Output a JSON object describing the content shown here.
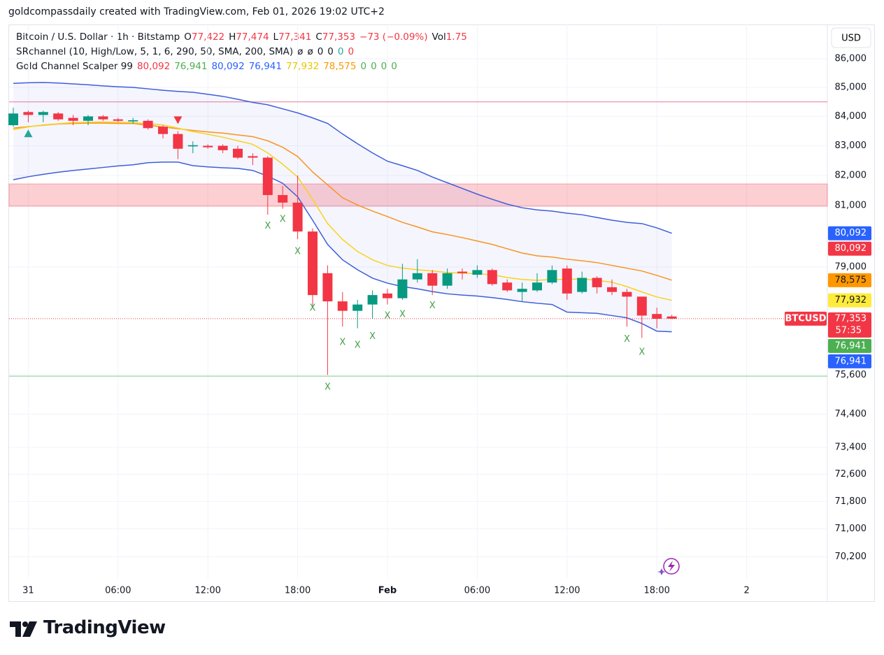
{
  "header": "goldcompassdaily created with TradingView.com, Feb 01, 2026 19:02 UTC+2",
  "footer": "TradingView",
  "chart_data": {
    "type": "candlestick",
    "symbol": "Bitcoin / U.S. Dollar · 1h · Bitstamp",
    "quote": [
      {
        "key": "O",
        "text": "77,422"
      },
      {
        "key": "H",
        "text": "77,474"
      },
      {
        "key": "L",
        "text": "77,341"
      },
      {
        "key": "C",
        "text": "77,353"
      },
      {
        "text": "−73 (−0.09%)"
      },
      {
        "key": "Vol",
        "text": "1.75"
      }
    ],
    "quote_color": "#f23645",
    "indicators": [
      {
        "name": "SRchannel (10, High/Low, 5, 1, 6, 290, 50, SMA, 200, SMA)",
        "values": [
          {
            "text": "ø",
            "color": "#131722"
          },
          {
            "text": "ø",
            "color": "#131722"
          },
          {
            "text": "0",
            "color": "#131722"
          },
          {
            "text": "0",
            "color": "#131722"
          },
          {
            "text": "0",
            "color": "#26a69a"
          },
          {
            "text": "0",
            "color": "#f23645"
          }
        ]
      },
      {
        "name": "Gold Channel Scalper 99",
        "values": [
          {
            "text": "80,092",
            "color": "#f23645"
          },
          {
            "text": "76,941",
            "color": "#4caf50"
          },
          {
            "text": "80,092",
            "color": "#2962ff"
          },
          {
            "text": "76,941",
            "color": "#2962ff"
          },
          {
            "text": "77,932",
            "color": "#e6c800"
          },
          {
            "text": "78,575",
            "color": "#ff9800"
          },
          {
            "text": "0",
            "color": "#4caf50"
          },
          {
            "text": "0",
            "color": "#4caf50"
          },
          {
            "text": "0",
            "color": "#4caf50"
          },
          {
            "text": "0",
            "color": "#4caf50"
          }
        ]
      }
    ],
    "currency": "USD",
    "categories": [
      null,
      "31",
      null,
      null,
      null,
      null,
      null,
      "06:00",
      null,
      null,
      null,
      null,
      null,
      "12:00",
      null,
      null,
      null,
      null,
      null,
      "18:00",
      null,
      null,
      null,
      null,
      null,
      "Feb",
      null,
      null,
      null,
      null,
      null,
      "06:00",
      null,
      null,
      null,
      null,
      null,
      "12:00",
      null,
      null,
      null,
      null,
      null,
      "18:00",
      null,
      null,
      null,
      null,
      null,
      "2",
      null,
      null,
      null,
      null,
      null
    ],
    "open": [
      83700,
      84150,
      84050,
      84100,
      83950,
      83850,
      84000,
      83900,
      83830,
      83850,
      83650,
      83400,
      82980,
      83000,
      83000,
      82900,
      82650,
      82600,
      81350,
      81100,
      80150,
      78800,
      77900,
      77600,
      77800,
      78150,
      78000,
      78600,
      78800,
      78400,
      78850,
      78750,
      78900,
      78500,
      78200,
      78250,
      78500,
      78950,
      78200,
      78650,
      78350,
      78200,
      78050,
      77500,
      77422,
      null,
      null,
      null,
      null,
      null,
      null,
      null,
      null,
      null,
      null
    ],
    "high": [
      84300,
      84200,
      84200,
      84150,
      84050,
      84050,
      84050,
      83950,
      83950,
      83900,
      83700,
      83500,
      83150,
      83050,
      83050,
      83000,
      82750,
      82650,
      81650,
      82000,
      80250,
      79050,
      78200,
      77950,
      78250,
      78300,
      79100,
      79250,
      78900,
      78950,
      78950,
      79050,
      78950,
      78600,
      78500,
      78800,
      79050,
      79050,
      78850,
      78700,
      78600,
      78300,
      78050,
      77700,
      77474,
      null,
      null,
      null,
      null,
      null,
      null,
      null,
      null,
      null,
      null
    ],
    "low": [
      83650,
      83800,
      83800,
      83850,
      83700,
      83700,
      83850,
      83800,
      83750,
      83550,
      83250,
      82550,
      82750,
      82900,
      82750,
      82550,
      82350,
      80700,
      80900,
      79900,
      77750,
      75600,
      77100,
      77050,
      77350,
      77800,
      77950,
      78500,
      78100,
      78300,
      78600,
      78650,
      78400,
      78200,
      77900,
      78200,
      78450,
      77950,
      78150,
      78150,
      78100,
      77100,
      76750,
      77050,
      77341,
      null,
      null,
      null,
      null,
      null,
      null,
      null,
      null,
      null,
      null
    ],
    "close": [
      84100,
      84050,
      84150,
      83900,
      83850,
      84000,
      83900,
      83850,
      83870,
      83600,
      83400,
      82900,
      83020,
      82950,
      82850,
      82600,
      82600,
      81350,
      81100,
      80150,
      78100,
      77900,
      77600,
      77800,
      78100,
      78000,
      78600,
      78800,
      78400,
      78800,
      78800,
      78900,
      78450,
      78250,
      78300,
      78500,
      78900,
      78150,
      78650,
      78350,
      78200,
      78050,
      77450,
      77350,
      77353,
      null,
      null,
      null,
      null,
      null,
      null,
      null,
      null,
      null,
      null
    ],
    "up_color": "#089981",
    "down_color": "#f23645",
    "overlays": [
      {
        "color": "#3d5fd9",
        "values": [
          85140,
          85160,
          85170,
          85150,
          85120,
          85090,
          85050,
          85020,
          85000,
          84950,
          84900,
          84860,
          84830,
          84760,
          84690,
          84590,
          84480,
          84400,
          84260,
          84120,
          83950,
          83760,
          83400,
          83070,
          82760,
          82480,
          82330,
          82170,
          81950,
          81760,
          81570,
          81380,
          81210,
          81050,
          80930,
          80860,
          80820,
          80750,
          80700,
          80610,
          80520,
          80450,
          80410,
          80270,
          80092,
          null,
          null,
          null,
          null,
          null,
          null,
          null,
          null,
          null,
          null
        ]
      },
      {
        "color": "#3d5fd9",
        "values": [
          81860,
          81960,
          82040,
          82110,
          82170,
          82220,
          82270,
          82320,
          82360,
          82430,
          82450,
          82450,
          82330,
          82290,
          82260,
          82240,
          82170,
          81980,
          81740,
          81290,
          80520,
          79730,
          79230,
          78910,
          78640,
          78480,
          78370,
          78300,
          78210,
          78140,
          78100,
          78070,
          78020,
          77960,
          77890,
          77840,
          77800,
          77560,
          77540,
          77520,
          77450,
          77380,
          77200,
          76960,
          76941,
          null,
          null,
          null,
          null,
          null,
          null,
          null,
          null,
          null,
          null
        ]
      },
      {
        "color": "#f8941e",
        "values": [
          83600,
          83650,
          83700,
          83740,
          83760,
          83770,
          83770,
          83760,
          83760,
          83700,
          83640,
          83580,
          83520,
          83470,
          83430,
          83370,
          83310,
          83170,
          82950,
          82640,
          82120,
          81690,
          81260,
          81020,
          80820,
          80640,
          80450,
          80300,
          80140,
          80050,
          79950,
          79840,
          79730,
          79590,
          79450,
          79360,
          79320,
          79250,
          79200,
          79140,
          79050,
          78960,
          78870,
          78730,
          78575,
          null,
          null,
          null,
          null,
          null,
          null,
          null,
          null,
          null,
          null
        ]
      },
      {
        "color": "#f7d31d",
        "values": [
          83550,
          83640,
          83710,
          83750,
          83790,
          83800,
          83810,
          83800,
          83790,
          83750,
          83710,
          83600,
          83480,
          83390,
          83290,
          83170,
          83050,
          82760,
          82380,
          81950,
          81210,
          80410,
          79890,
          79500,
          79230,
          79050,
          78960,
          78910,
          78870,
          78820,
          78800,
          78780,
          78750,
          78660,
          78600,
          78570,
          78600,
          78600,
          78620,
          78570,
          78510,
          78370,
          78200,
          78040,
          77932,
          null,
          null,
          null,
          null,
          null,
          null,
          null,
          null,
          null,
          null
        ]
      }
    ],
    "band_fill": "rgba(110,120,235,0.07)",
    "levels": [
      {
        "price": 84500,
        "color": "#e57c9c"
      },
      {
        "price": 75560,
        "color": "#7fcf8a"
      }
    ],
    "zone": {
      "from": 80980,
      "to": 81720,
      "color": "rgba(242,54,69,0.24)",
      "border": "rgba(242,54,69,0.4)"
    },
    "x_marks": {
      "label": "X",
      "color": "#43a047",
      "values": [
        null,
        null,
        null,
        null,
        null,
        null,
        null,
        null,
        null,
        null,
        null,
        null,
        null,
        null,
        null,
        null,
        null,
        80330,
        80540,
        79500,
        77680,
        75220,
        76600,
        76520,
        76790,
        77440,
        77480,
        null,
        77760,
        null,
        null,
        null,
        null,
        null,
        null,
        null,
        null,
        null,
        null,
        null,
        null,
        76700,
        76300,
        null,
        null,
        null,
        null,
        null,
        null,
        null,
        null,
        null,
        null,
        null,
        null
      ]
    },
    "up_arrows": {
      "color": "#26a69a",
      "values": [
        null,
        83410,
        null,
        null,
        null,
        null,
        null,
        null,
        null,
        null,
        null,
        null,
        null,
        null,
        null,
        null,
        null,
        null,
        null,
        null,
        null,
        null,
        null,
        null,
        null,
        null,
        null,
        null,
        null,
        null,
        null,
        null,
        null,
        null,
        null,
        null,
        null,
        null,
        null,
        null,
        null,
        null,
        null,
        null,
        null,
        null,
        null,
        null,
        null,
        null,
        null,
        null,
        null,
        null,
        null
      ]
    },
    "down_arrows": {
      "color": "#f23645",
      "values": [
        null,
        null,
        null,
        null,
        null,
        null,
        null,
        null,
        null,
        null,
        null,
        83880,
        null,
        null,
        null,
        null,
        null,
        null,
        null,
        null,
        null,
        null,
        null,
        null,
        null,
        null,
        null,
        null,
        null,
        null,
        null,
        null,
        null,
        null,
        null,
        null,
        null,
        null,
        null,
        null,
        null,
        null,
        null,
        null,
        null,
        null,
        null,
        null,
        null,
        null,
        null,
        null,
        null,
        null,
        null
      ]
    },
    "price_tags": [
      {
        "price": 80092,
        "text": "80,092",
        "color": "#2962ff",
        "text_color": "#ffffff"
      },
      {
        "price": 80092,
        "text": "80,092",
        "color": "#f23645",
        "text_color": "#ffffff"
      },
      {
        "price": 78575,
        "text": "78,575",
        "color": "#ff9800",
        "text_color": "#131722"
      },
      {
        "price": 77932,
        "text": "77,932",
        "color": "#ffeb3b",
        "text_color": "#131722"
      },
      {
        "price": 76941,
        "text": "76,941",
        "color": "#4caf50",
        "text_color": "#ffffff"
      },
      {
        "price": 76941,
        "text": "76,941",
        "color": "#2962ff",
        "text_color": "#ffffff"
      }
    ],
    "last_price": {
      "price": 77353,
      "symbol_tag": "BTCUSD",
      "text": "77,353",
      "countdown": "57:35",
      "color": "#f23645"
    },
    "log_scale": true,
    "grid": true,
    "ylim": [
      69570,
      87208
    ],
    "yticks": [
      {
        "value": 86000,
        "label": "86,000"
      },
      {
        "value": 85000,
        "label": "85,000"
      },
      {
        "value": 84000,
        "label": "84,000"
      },
      {
        "value": 83000,
        "label": "83,000"
      },
      {
        "value": 82000,
        "label": "82,000"
      },
      {
        "value": 81000,
        "label": "81,000"
      },
      {
        "value": 79000,
        "label": "79,000"
      },
      {
        "value": 75600,
        "label": "75,600"
      },
      {
        "value": 74400,
        "label": "74,400"
      },
      {
        "value": 73400,
        "label": "73,400"
      },
      {
        "value": 72600,
        "label": "72,600"
      },
      {
        "value": 71800,
        "label": "71,800"
      },
      {
        "value": 71000,
        "label": "71,000"
      },
      {
        "value": 70200,
        "label": "70,200"
      }
    ]
  }
}
